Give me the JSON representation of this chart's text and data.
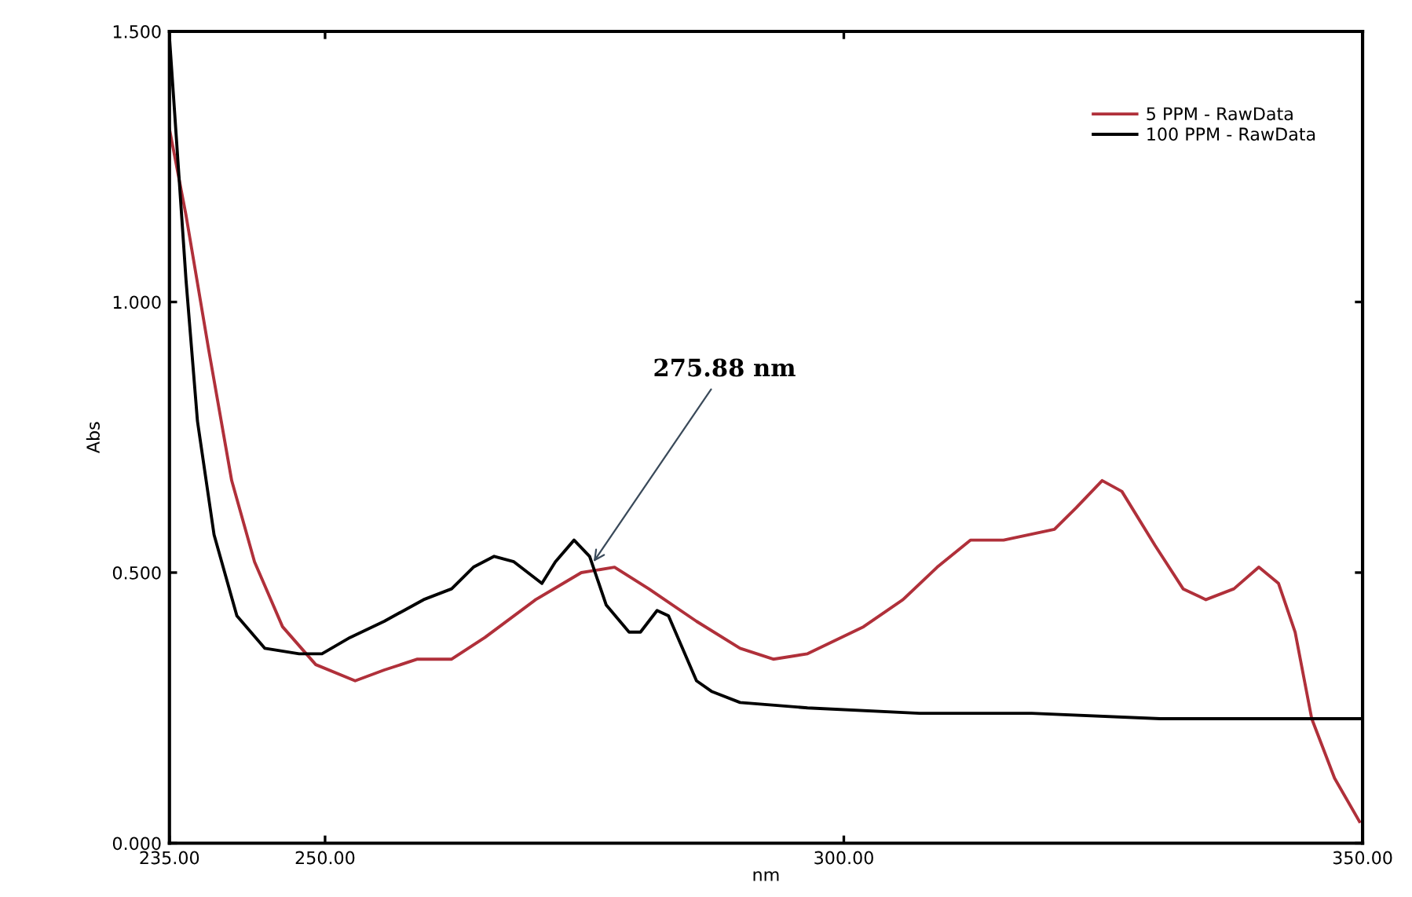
{
  "chart_data": {
    "type": "line",
    "xlabel": "nm",
    "ylabel": "Abs",
    "xlim": [
      235,
      350
    ],
    "ylim": [
      0,
      1.5
    ],
    "xticks": [
      {
        "value": 235,
        "label": "235.00"
      },
      {
        "value": 250,
        "label": "250.00"
      },
      {
        "value": 300,
        "label": "300.00"
      },
      {
        "value": 350,
        "label": "350.00"
      }
    ],
    "yticks": [
      {
        "value": 0,
        "label": "0.000"
      },
      {
        "value": 0.5,
        "label": "0.500"
      },
      {
        "value": 1.0,
        "label": "1.000"
      },
      {
        "value": 1.5,
        "label": "1.500"
      }
    ],
    "grid": false,
    "legend": "top right",
    "marker": "none",
    "line_style": "solid",
    "annotations": [
      {
        "text": "275.88 nm",
        "x": 275.88,
        "y": 0.52
      }
    ],
    "series": [
      {
        "name": "5 PPM - RawData",
        "color": "#b0303a",
        "x": [
          235,
          236.6,
          238.8,
          241.0,
          243.2,
          245.9,
          249.1,
          252.9,
          255.7,
          258.9,
          262.2,
          265.4,
          270.3,
          274.7,
          277.9,
          281.2,
          285.8,
          290,
          293.2,
          296.5,
          301.9,
          305.7,
          309,
          312.2,
          315.4,
          320.3,
          322.4,
          324.9,
          326.8,
          330,
          332.7,
          334.9,
          337.6,
          340,
          341.9,
          343.5,
          345.1,
          347.3,
          349.7
        ],
        "values": [
          1.32,
          1.16,
          0.91,
          0.67,
          0.52,
          0.4,
          0.33,
          0.3,
          0.32,
          0.34,
          0.34,
          0.38,
          0.45,
          0.5,
          0.51,
          0.47,
          0.41,
          0.36,
          0.34,
          0.35,
          0.4,
          0.45,
          0.51,
          0.56,
          0.56,
          0.58,
          0.62,
          0.67,
          0.65,
          0.55,
          0.47,
          0.45,
          0.47,
          0.51,
          0.48,
          0.39,
          0.23,
          0.12,
          0.04
        ]
      },
      {
        "name": "100 PPM - RawData",
        "color": "#000000",
        "x": [
          235,
          235.5,
          236.6,
          237.7,
          239.3,
          241.5,
          244.2,
          247.5,
          249.7,
          252.4,
          255.7,
          259.5,
          262.2,
          264.3,
          266.3,
          268.2,
          270.9,
          272.2,
          274.0,
          275.5,
          277.1,
          279.3,
          280.4,
          282.0,
          283.1,
          285.8,
          287.3,
          290,
          296.5,
          307.3,
          318.1,
          330.5,
          337,
          350
        ],
        "values": [
          1.49,
          1.35,
          1.04,
          0.78,
          0.57,
          0.42,
          0.36,
          0.35,
          0.35,
          0.38,
          0.41,
          0.45,
          0.47,
          0.51,
          0.53,
          0.52,
          0.48,
          0.52,
          0.56,
          0.53,
          0.44,
          0.39,
          0.39,
          0.43,
          0.42,
          0.3,
          0.28,
          0.26,
          0.25,
          0.24,
          0.24,
          0.23,
          0.23,
          0.23
        ]
      }
    ]
  }
}
